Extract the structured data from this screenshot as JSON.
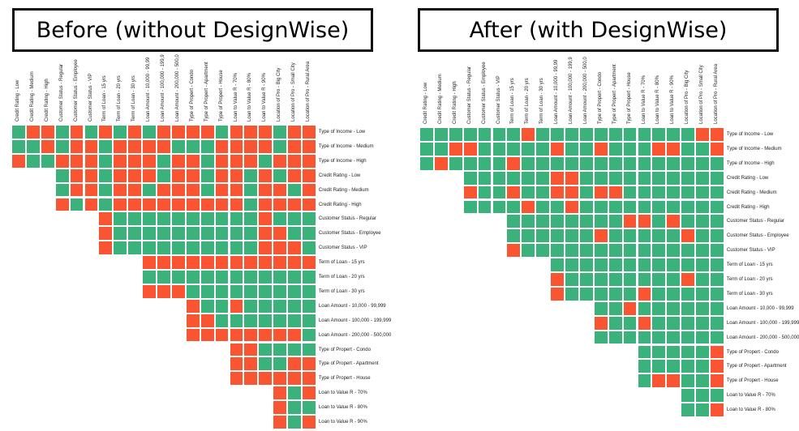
{
  "panels": [
    {
      "title": "Before (without DesignWise)",
      "columns": [
        "Credit Rating - Low",
        "Credit Rating - Medium",
        "Credit Rating - High",
        "Customer Status - Regular",
        "Customer Status - Employee",
        "Customer Status - VIP",
        "Term of Loan - 15 yrs",
        "Term of Loan - 20 yrs",
        "Term of Loan - 30 yrs",
        "Loan Amount - 10,000 - 99,99",
        "Loan Amount - 100,000 - 199,9",
        "Loan Amount - 200,000 - 500,0",
        "Type of Propert - Condo",
        "Type of Propert - Apartment",
        "Type of Propert - House",
        "Loan to Value R - 70%",
        "Loan to Value R - 80%",
        "Loan to Value R - 90%",
        "Location of Pro - Big City",
        "Location of Pro - Small City",
        "Location of Pro - Rural Area"
      ],
      "rows": [
        "Type of Income - Low",
        "Type of Income - Medium",
        "Type of Income - High",
        "Credit Rating - Low",
        "Credit Rating - Medium",
        "Credit Rating - High",
        "Customer Status - Regular",
        "Customer Status - Employee",
        "Customer Status - VIP",
        "Term of Loan - 15 yrs",
        "Term of Loan - 20 yrs",
        "Term of Loan - 30 yrs",
        "Loan Amount - 10,000 - 99,999",
        "Loan Amount - 100,000 - 199,999",
        "Loan Amount - 200,000 - 500,000",
        "Type of Propert - Condo",
        "Type of Propert - Apartment",
        "Type of Propert - House",
        "Loan to Value R - 70%",
        "Loan to Value R - 80%",
        "Loan to Value R - 90%"
      ],
      "cells": [
        "GRRGRGRGRGRRRRGRRRGRR",
        "GGRGRRGRRRRGGGRRRRGRR",
        "RGGRRRGRRRGRRGRRRGRRR",
        "   GRRGRRRGRRGRRGRGRR",
        "   GRRGRRGRRRGRRGRRGR",
        "   RGRGRRRRRRRRRGRRRR",
        "      RGGGGGGGGGGRGGG",
        "      RGGGGGGGGGGRRGG",
        "      RGGGGGGGGGGRRRG",
        "         RRRRRRRRRRRR",
        "         GGGGGGGGGGGG",
        "         RRRGGGGGGGGG",
        "            RGGRGGGGG",
        "            RRGGGGGGG",
        "            RRRRRRRRG",
        "               RRGGGG",
        "               RRGGRR",
        "               RRRRRR",
        "                  RGR",
        "                  RGG",
        "                  RGR"
      ]
    },
    {
      "title": "After (with DesignWise)",
      "columns": [
        "Credit Rating - Low",
        "Credit Rating - Medium",
        "Credit Rating - High",
        "Customer Status - Regular",
        "Customer Status - Employee",
        "Customer Status - VIP",
        "Term of Loan - 15 yrs",
        "Term of Loan - 20 yrs",
        "Term of Loan - 30 yrs",
        "Loan Amount - 10,000 - 99,99",
        "Loan Amount - 100,000 - 199,9",
        "Loan Amount - 200,000 - 500,0",
        "Type of Propert - Condo",
        "Type of Propert - Apartment",
        "Type of Propert - House",
        "Loan to Value R - 70%",
        "Loan to Value R - 80%",
        "Loan to Value R - 90%",
        "Location of Pro - Big City",
        "Location of Pro - Small City",
        "Location of Pro - Rural Area"
      ],
      "rows": [
        "Type of Income - Low",
        "Type of Income - Medium",
        "Type of Income - High",
        "Credit Rating - Low",
        "Credit Rating - Medium",
        "Credit Rating - High",
        "Customer Status - Regular",
        "Customer Status - Employee",
        "Customer Status - VIP",
        "Term of Loan - 15 yrs",
        "Term of Loan - 20 yrs",
        "Term of Loan - 30 yrs",
        "Loan Amount - 10,000 - 99,999",
        "Loan Amount - 100,000 - 199,999",
        "Loan Amount - 200,000 - 500,000",
        "Type of Propert - Condo",
        "Type of Propert - Apartment",
        "Type of Propert - House",
        "Loan to Value R - 70%",
        "Loan to Value R - 80%"
      ],
      "cells": [
        "GGGGGGGRGGGGGGGGGGGRR",
        "GGRRGGGGGRGGRGGGRRGGR",
        "GRGGGGRGGGGGGGGGGGGGG",
        "   GGGGGGRRGGGGGGGGGG",
        "   RGGRGGRRGRRGGGGGGG",
        "   GGGGRGGRGGGGGGGGGG",
        "      GGGGGGGGRRGRGGG",
        "      GGGGGGRGGGGGRGG",
        "      RGGGGGGGGGGGGGG",
        "         GGGGGGGGGGGG",
        "         RGGGGGGGGRGG",
        "         RGGGGGRGGGGG",
        "            GGRGGGGGG",
        "            RGGRGGGGG",
        "            GGGGGGGGG",
        "               GGGGGR",
        "               GGGGGR",
        "               GRRGGR",
        "                  GGG",
        "                  GGR"
      ]
    }
  ],
  "colors": {
    "green": "#3bb27c",
    "red": "#fa5533"
  }
}
